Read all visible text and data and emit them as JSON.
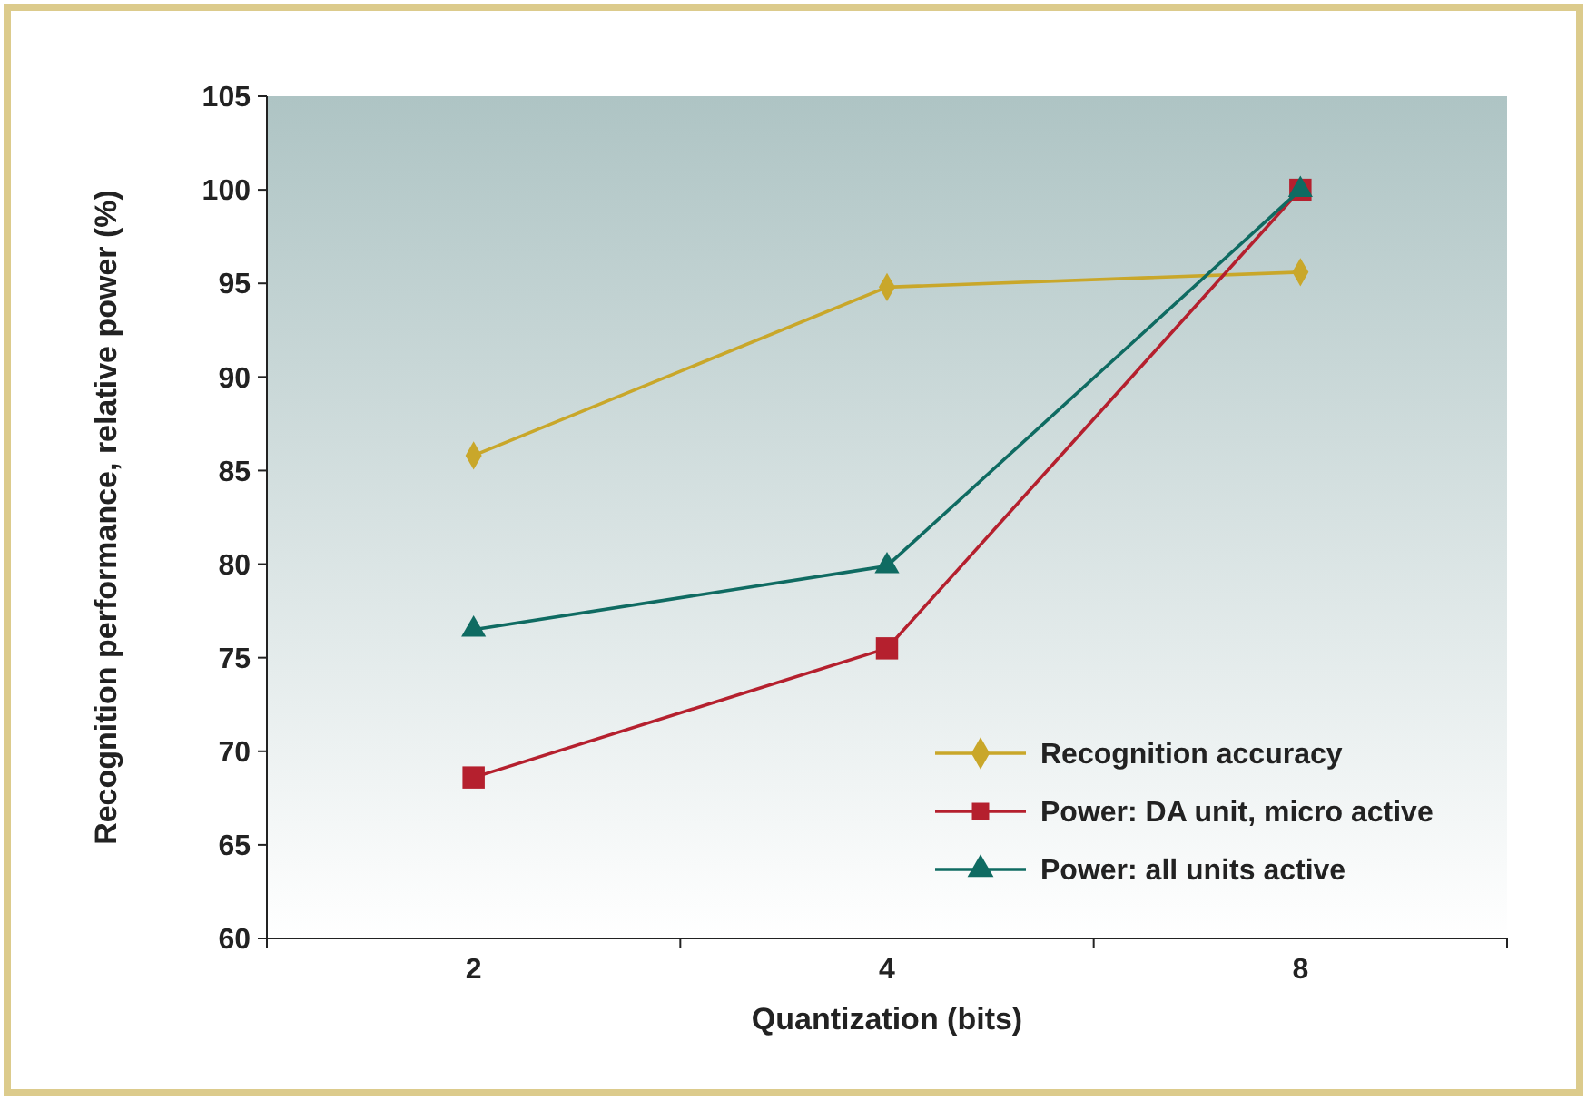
{
  "chart_data": {
    "type": "line",
    "xlabel": "Quantization (bits)",
    "ylabel": "Recognition performance, relative power (%)",
    "categories": [
      "2",
      "4",
      "8"
    ],
    "ylim": [
      60,
      105
    ],
    "yticks": [
      60,
      65,
      70,
      75,
      80,
      85,
      90,
      95,
      100,
      105
    ],
    "grid": false,
    "legend": "bottom right",
    "series": [
      {
        "name": "Recognition accuracy",
        "color": "#c9a72a",
        "marker": "diamond",
        "values": [
          85.8,
          94.8,
          95.6
        ]
      },
      {
        "name": "Power: DA unit, micro active",
        "color": "#b5202e",
        "marker": "square",
        "values": [
          68.6,
          75.5,
          100
        ]
      },
      {
        "name": "Power: all units active",
        "color": "#0f6b62",
        "marker": "triangle",
        "values": [
          76.5,
          79.9,
          100
        ]
      }
    ]
  }
}
